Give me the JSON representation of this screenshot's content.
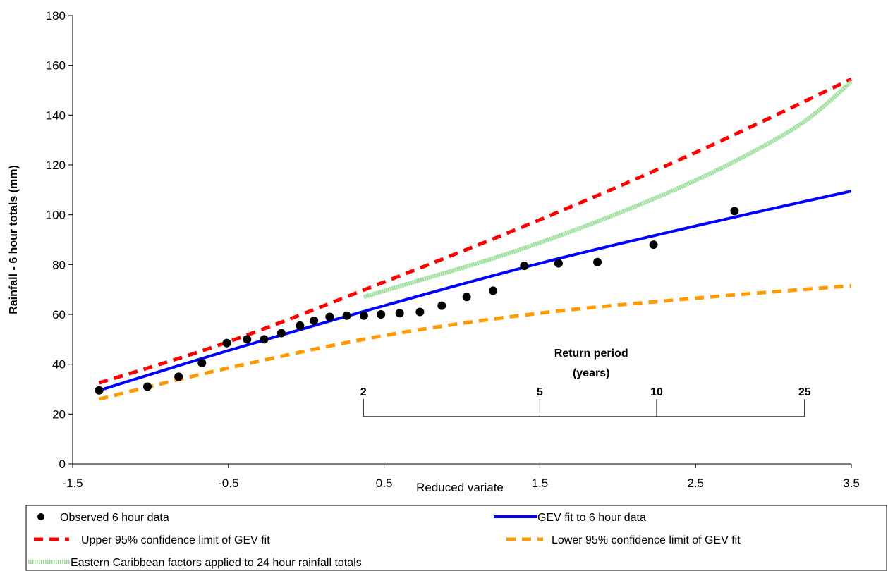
{
  "chart_data": {
    "type": "line",
    "title": "",
    "xlabel": "Reduced variate",
    "ylabel": "Rainfall - 6 hour totals (mm)",
    "xlim": [
      -1.5,
      3.5
    ],
    "ylim": [
      0,
      180
    ],
    "xticks": [
      "-1.5",
      "-0.5",
      "0.5",
      "1.5",
      "2.5",
      "3.5"
    ],
    "yticks": [
      "0",
      "20",
      "40",
      "60",
      "80",
      "100",
      "120",
      "140",
      "160",
      "180"
    ],
    "grid": false,
    "legend_position": "bottom",
    "series": [
      {
        "name": "Observed 6 hour data",
        "kind": "scatter",
        "color": "#000000",
        "x": [
          -1.33,
          -1.02,
          -0.82,
          -0.67,
          -0.51,
          -0.38,
          -0.27,
          -0.16,
          -0.04,
          0.05,
          0.15,
          0.26,
          0.37,
          0.48,
          0.6,
          0.73,
          0.87,
          1.03,
          1.2,
          1.4,
          1.62,
          1.87,
          2.23,
          2.75
        ],
        "y": [
          29.5,
          31,
          35,
          40.5,
          48.5,
          50,
          50,
          52.5,
          55.5,
          57.5,
          59,
          59.5,
          59.5,
          60,
          60.5,
          61,
          63.5,
          67,
          69.5,
          79.5,
          80.5,
          81,
          88,
          101.5
        ]
      },
      {
        "name": "GEV fit to 6 hour data",
        "kind": "line",
        "style": "solid",
        "color": "#0000ff",
        "x": [
          -1.33,
          -0.5,
          0.5,
          1.5,
          2.5,
          3.5
        ],
        "y": [
          29.5,
          45.5,
          63.5,
          80.5,
          95.5,
          109.5
        ]
      },
      {
        "name": "Upper 95% confidence limit of GEV fit",
        "kind": "line",
        "style": "dashed",
        "color": "#ff0000",
        "x": [
          -1.33,
          -0.5,
          0.5,
          1.5,
          2.5,
          3.5
        ],
        "y": [
          32.5,
          49,
          73,
          98,
          125,
          154.5
        ]
      },
      {
        "name": "Lower 95% confidence limit of GEV fit",
        "kind": "line",
        "style": "dashed",
        "color": "#ff9900",
        "x": [
          -1.33,
          -0.5,
          0.5,
          1.5,
          2.5,
          3.5
        ],
        "y": [
          26,
          38.5,
          51.5,
          60.5,
          66.5,
          71.5
        ]
      },
      {
        "name": "Eastern Caribbean factors applied to 24 hour rainfall totals",
        "kind": "line",
        "style": "dotted-band",
        "color": "#99dd99",
        "x": [
          0.37,
          0.8,
          1.2,
          1.6,
          2.0,
          2.4,
          2.8,
          3.2,
          3.5
        ],
        "y": [
          67,
          75,
          82.5,
          91,
          100.5,
          111,
          123,
          137.5,
          153.5
        ]
      }
    ],
    "return_period": {
      "title_line1": "Return period",
      "title_line2": "(years)",
      "ticks": [
        {
          "label": "2",
          "x": 0.367
        },
        {
          "label": "5",
          "x": 1.5
        },
        {
          "label": "10",
          "x": 2.25
        },
        {
          "label": "25",
          "x": 3.2
        }
      ],
      "scale_y": 19,
      "tick_top_y": 26
    }
  }
}
